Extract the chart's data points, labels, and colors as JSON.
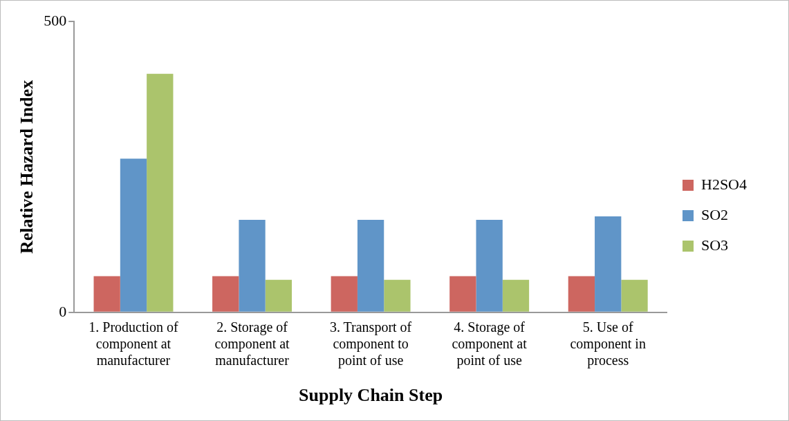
{
  "chart_data": {
    "type": "bar",
    "xlabel": "Supply Chain Step",
    "ylabel": "Relative Hazard Index",
    "categories": [
      "1. Production of component at manufacturer",
      "2. Storage of component at manufacturer",
      "3. Transport of component to point of use",
      "4. Storage of component at point of use",
      "5. Use of component in process"
    ],
    "series": [
      {
        "name": "H2SO4",
        "color": "#cd6660",
        "values": [
          62,
          62,
          62,
          62,
          62
        ]
      },
      {
        "name": "SO2",
        "color": "#6095c8",
        "values": [
          264,
          159,
          159,
          159,
          165
        ]
      },
      {
        "name": "SO3",
        "color": "#abc46c",
        "values": [
          410,
          56,
          56,
          56,
          56
        ]
      }
    ],
    "ylim": [
      0,
      500
    ],
    "yticks": [
      0,
      500
    ],
    "grid": false,
    "legend": "right"
  }
}
